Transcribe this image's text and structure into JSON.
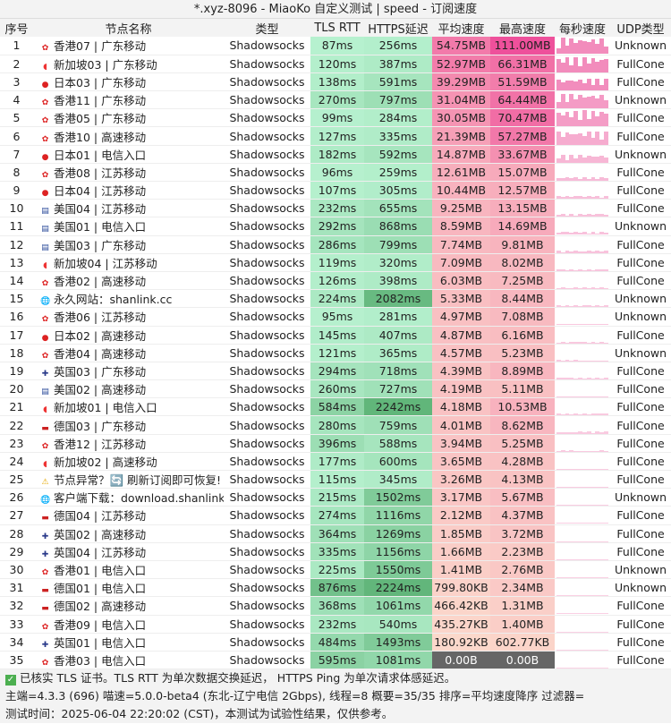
{
  "title": "*.xyz-8096 - MiaoKo 自定义测试 | speed - 订阅速度",
  "headers": [
    "序号",
    "节点名称",
    "类型",
    "TLS RTT",
    "HTTPS延迟",
    "平均速度",
    "最高速度",
    "每秒速度",
    "UDP类型"
  ],
  "rows": [
    [
      "1",
      "hk",
      "香港07 | 广东移动",
      "Shadowsocks",
      "87ms",
      "256ms",
      "54.75MB",
      "111.00MB",
      "Unknown"
    ],
    [
      "2",
      "sg",
      "新加坡03 | 广东移动",
      "Shadowsocks",
      "120ms",
      "387ms",
      "52.97MB",
      "66.31MB",
      "FullCone"
    ],
    [
      "3",
      "jp",
      "日本03 | 广东移动",
      "Shadowsocks",
      "138ms",
      "591ms",
      "39.29MB",
      "51.59MB",
      "FullCone"
    ],
    [
      "4",
      "hk",
      "香港11 | 广东移动",
      "Shadowsocks",
      "270ms",
      "797ms",
      "31.04MB",
      "64.44MB",
      "Unknown"
    ],
    [
      "5",
      "hk",
      "香港05 | 广东移动",
      "Shadowsocks",
      "99ms",
      "284ms",
      "30.05MB",
      "70.47MB",
      "FullCone"
    ],
    [
      "6",
      "hk",
      "香港10 | 高速移动",
      "Shadowsocks",
      "127ms",
      "335ms",
      "21.39MB",
      "57.27MB",
      "FullCone"
    ],
    [
      "7",
      "jp",
      "日本01 | 电信入口",
      "Shadowsocks",
      "182ms",
      "592ms",
      "14.87MB",
      "33.67MB",
      "Unknown"
    ],
    [
      "8",
      "hk",
      "香港08 | 江苏移动",
      "Shadowsocks",
      "96ms",
      "259ms",
      "12.61MB",
      "15.07MB",
      "FullCone"
    ],
    [
      "9",
      "jp",
      "日本04 | 江苏移动",
      "Shadowsocks",
      "107ms",
      "305ms",
      "10.44MB",
      "12.57MB",
      "FullCone"
    ],
    [
      "10",
      "us",
      "美国04 | 江苏移动",
      "Shadowsocks",
      "232ms",
      "655ms",
      "9.25MB",
      "13.15MB",
      "FullCone"
    ],
    [
      "11",
      "us",
      "美国01 | 电信入口",
      "Shadowsocks",
      "292ms",
      "868ms",
      "8.59MB",
      "14.69MB",
      "Unknown"
    ],
    [
      "12",
      "us",
      "美国03 | 广东移动",
      "Shadowsocks",
      "286ms",
      "799ms",
      "7.74MB",
      "9.81MB",
      "FullCone"
    ],
    [
      "13",
      "sg",
      "新加坡04 | 江苏移动",
      "Shadowsocks",
      "119ms",
      "320ms",
      "7.09MB",
      "8.02MB",
      "FullCone"
    ],
    [
      "14",
      "hk",
      "香港02 | 高速移动",
      "Shadowsocks",
      "126ms",
      "398ms",
      "6.03MB",
      "7.25MB",
      "FullCone"
    ],
    [
      "15",
      "globe",
      "永久网站：shanlink.cc",
      "Shadowsocks",
      "224ms",
      "2082ms",
      "5.33MB",
      "8.44MB",
      "Unknown"
    ],
    [
      "16",
      "hk",
      "香港06 | 江苏移动",
      "Shadowsocks",
      "95ms",
      "281ms",
      "4.97MB",
      "7.08MB",
      "Unknown"
    ],
    [
      "17",
      "jp",
      "日本02 | 高速移动",
      "Shadowsocks",
      "145ms",
      "407ms",
      "4.87MB",
      "6.16MB",
      "FullCone"
    ],
    [
      "18",
      "hk",
      "香港04 | 高速移动",
      "Shadowsocks",
      "121ms",
      "365ms",
      "4.57MB",
      "5.23MB",
      "Unknown"
    ],
    [
      "19",
      "uk",
      "英国03 | 广东移动",
      "Shadowsocks",
      "294ms",
      "718ms",
      "4.39MB",
      "8.89MB",
      "FullCone"
    ],
    [
      "20",
      "us",
      "美国02 | 高速移动",
      "Shadowsocks",
      "260ms",
      "727ms",
      "4.19MB",
      "5.11MB",
      "FullCone"
    ],
    [
      "21",
      "sg",
      "新加坡01 | 电信入口",
      "Shadowsocks",
      "584ms",
      "2242ms",
      "4.18MB",
      "10.53MB",
      "FullCone"
    ],
    [
      "22",
      "de",
      "德国03 | 广东移动",
      "Shadowsocks",
      "280ms",
      "759ms",
      "4.01MB",
      "8.62MB",
      "FullCone"
    ],
    [
      "23",
      "hk",
      "香港12 | 江苏移动",
      "Shadowsocks",
      "396ms",
      "588ms",
      "3.94MB",
      "5.25MB",
      "FullCone"
    ],
    [
      "24",
      "sg",
      "新加坡02 | 高速移动",
      "Shadowsocks",
      "177ms",
      "600ms",
      "3.65MB",
      "4.28MB",
      "FullCone"
    ],
    [
      "25",
      "warn",
      "节点异常？🔄 刷新订阅即可恢复!",
      "Shadowsocks",
      "115ms",
      "345ms",
      "3.26MB",
      "4.13MB",
      "FullCone"
    ],
    [
      "26",
      "globe",
      "客户端下载：download.shanlink.xyz",
      "Shadowsocks",
      "215ms",
      "1502ms",
      "3.17MB",
      "5.67MB",
      "Unknown"
    ],
    [
      "27",
      "de",
      "德国04 | 江苏移动",
      "Shadowsocks",
      "274ms",
      "1116ms",
      "2.12MB",
      "4.37MB",
      "FullCone"
    ],
    [
      "28",
      "uk",
      "英国02 | 高速移动",
      "Shadowsocks",
      "364ms",
      "1269ms",
      "1.85MB",
      "3.72MB",
      "FullCone"
    ],
    [
      "29",
      "uk",
      "英国04 | 江苏移动",
      "Shadowsocks",
      "335ms",
      "1156ms",
      "1.66MB",
      "2.23MB",
      "FullCone"
    ],
    [
      "30",
      "hk",
      "香港01 | 电信入口",
      "Shadowsocks",
      "225ms",
      "1550ms",
      "1.41MB",
      "2.76MB",
      "Unknown"
    ],
    [
      "31",
      "de",
      "德国01 | 电信入口",
      "Shadowsocks",
      "876ms",
      "2224ms",
      "799.80KB",
      "2.34MB",
      "Unknown"
    ],
    [
      "32",
      "de",
      "德国02 | 高速移动",
      "Shadowsocks",
      "368ms",
      "1061ms",
      "466.42KB",
      "1.31MB",
      "FullCone"
    ],
    [
      "33",
      "hk",
      "香港09 | 电信入口",
      "Shadowsocks",
      "232ms",
      "540ms",
      "435.27KB",
      "1.40MB",
      "FullCone"
    ],
    [
      "34",
      "uk",
      "英国01 | 电信入口",
      "Shadowsocks",
      "484ms",
      "1493ms",
      "180.92KB",
      "602.77KB",
      "FullCone"
    ],
    [
      "35",
      "hk",
      "香港03 | 电信入口",
      "Shadowsocks",
      "595ms",
      "1081ms",
      "0.00B",
      "0.00B",
      "FullCone"
    ]
  ],
  "footer": {
    "line1": "已核实 TLS 证书。TLS RTT 为单次数据交换延迟， HTTPS Ping 为单次请求体感延迟。",
    "line2": "主端=4.3.3 (696) 喵速=5.0.0-beta4 (东北-辽宁电信 2Gbps), 线程=8 概要=35/35 排序=平均速度降序 过滤器=",
    "line3": "测试时间：2025-06-04 22:20:02 (CST)，本测试为试验性结果，仅供参考。"
  },
  "flag_icons": {
    "hk": "✿",
    "sg": "◖",
    "jp": "●",
    "us": "▤",
    "uk": "✚",
    "de": "▬",
    "globe": "🌐",
    "warn": "⚠"
  }
}
